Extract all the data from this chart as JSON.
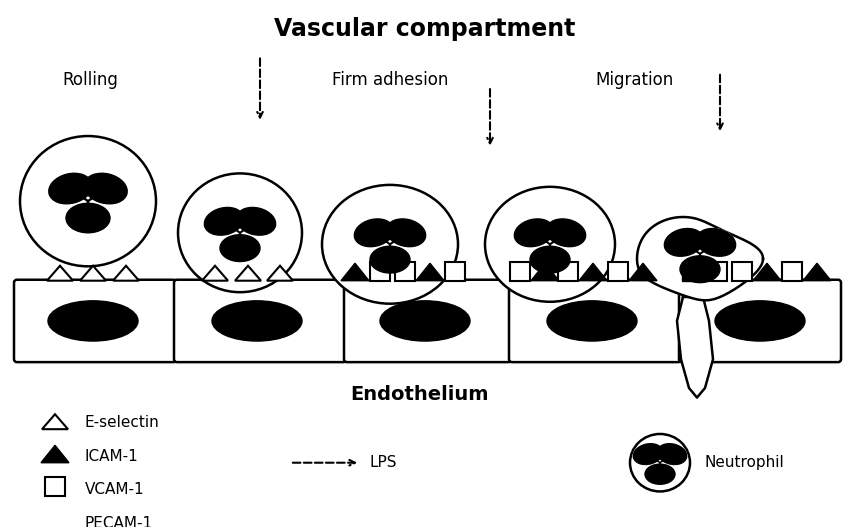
{
  "title": "Vascular compartment",
  "endothelium_label": "Endothelium",
  "bg_color": "#ffffff",
  "fg_color": "#000000",
  "neutrophil_legend_label": "Neutrophil",
  "lps_label": "LPS"
}
